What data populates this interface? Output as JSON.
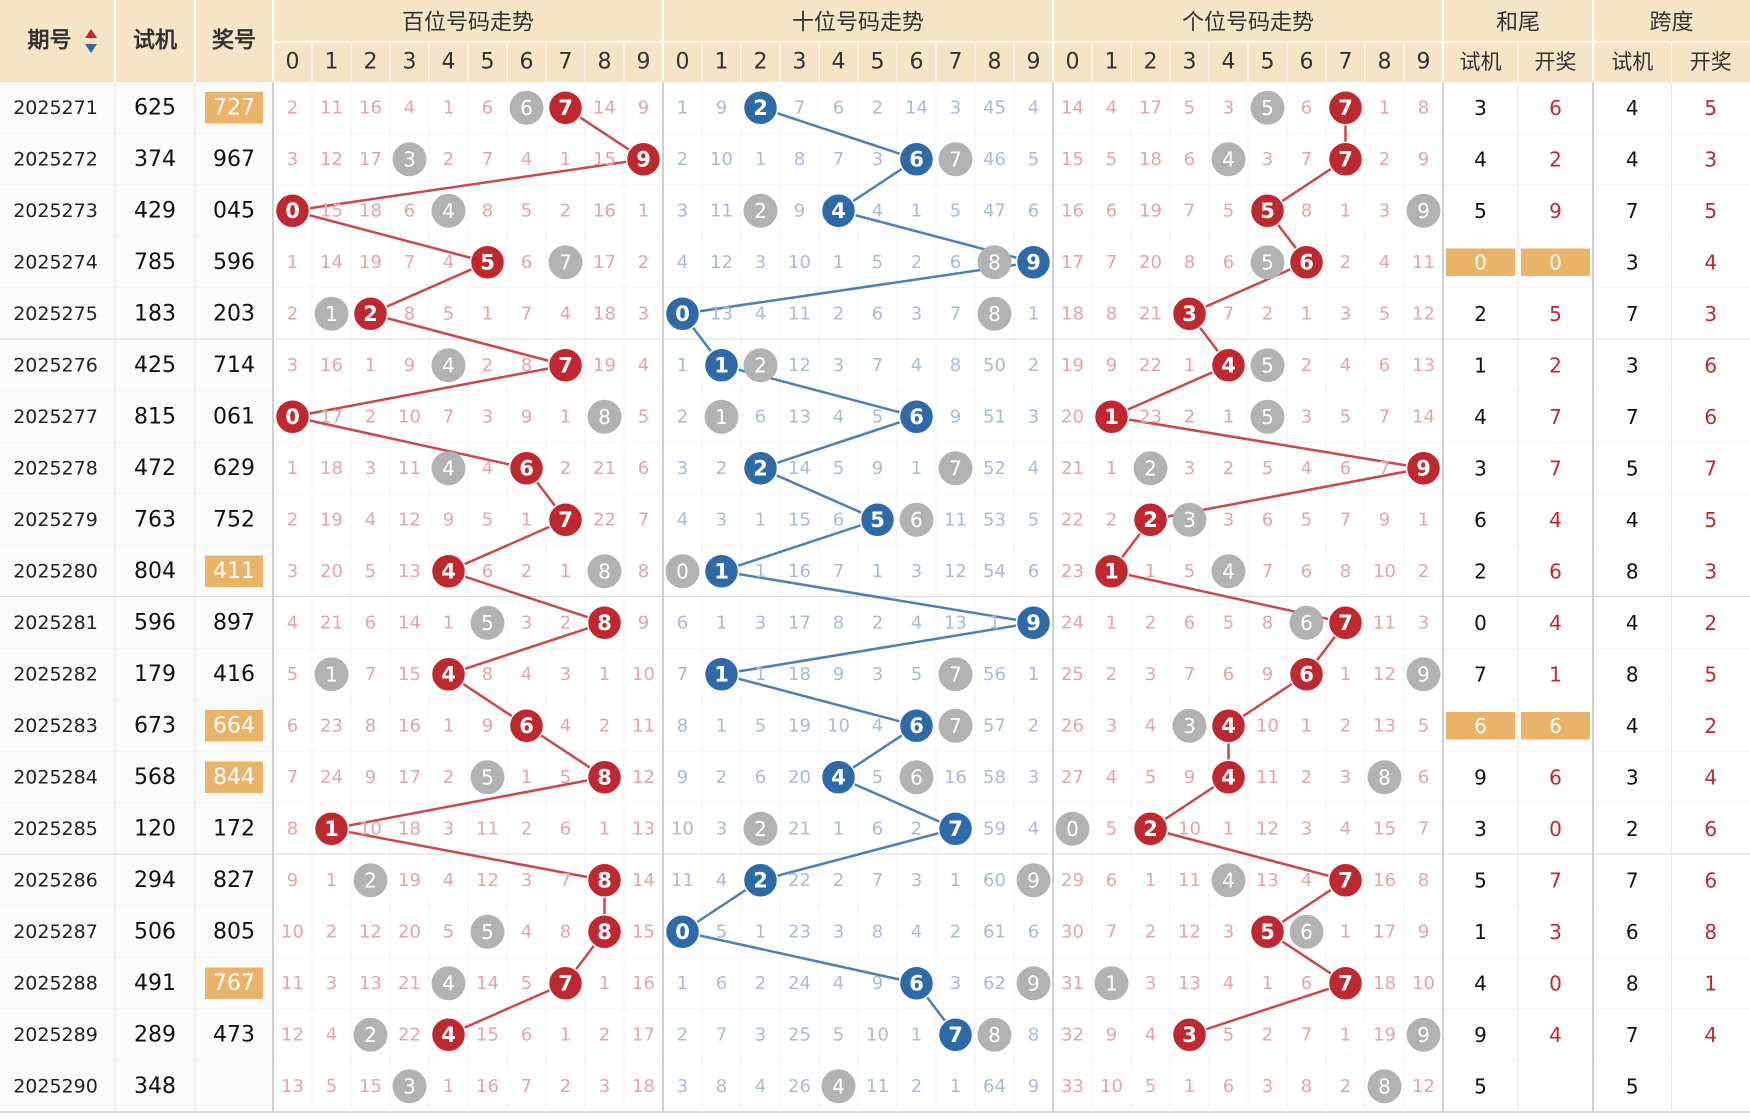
{
  "header": {
    "issue": "期号",
    "trial": "试机",
    "prize": "奖号",
    "groups": [
      "百位号码走势",
      "十位号码走势",
      "个位号码走势"
    ],
    "digits": [
      0,
      1,
      2,
      3,
      4,
      5,
      6,
      7,
      8,
      9
    ],
    "sum_tail": "和尾",
    "span": "跨度",
    "sub": [
      "试机",
      "开奖"
    ]
  },
  "rows": [
    {
      "issue": "2025271",
      "trial": "625",
      "prize": "727",
      "trend": [
        [
          2,
          11,
          16,
          4,
          1,
          6,
          6,
          7,
          14,
          9
        ],
        [
          1,
          9,
          2,
          7,
          6,
          2,
          14,
          3,
          45,
          4
        ],
        [
          14,
          4,
          17,
          5,
          3,
          5,
          6,
          7,
          1,
          8
        ]
      ],
      "sum_tail": [
        3,
        6
      ],
      "span": [
        4,
        5
      ]
    },
    {
      "issue": "2025272",
      "trial": "374",
      "prize": "967",
      "trend": [
        [
          3,
          12,
          17,
          3,
          2,
          7,
          4,
          1,
          15,
          9
        ],
        [
          2,
          10,
          1,
          8,
          7,
          3,
          6,
          7,
          46,
          5
        ],
        [
          15,
          5,
          18,
          6,
          4,
          3,
          7,
          7,
          2,
          9
        ]
      ],
      "sum_tail": [
        4,
        2
      ],
      "span": [
        4,
        3
      ]
    },
    {
      "issue": "2025273",
      "trial": "429",
      "prize": "045",
      "trend": [
        [
          0,
          15,
          18,
          6,
          4,
          8,
          5,
          2,
          16,
          1
        ],
        [
          3,
          11,
          2,
          9,
          4,
          4,
          1,
          5,
          47,
          6
        ],
        [
          16,
          6,
          19,
          7,
          5,
          5,
          8,
          1,
          3,
          9
        ]
      ],
      "sum_tail": [
        5,
        9
      ],
      "span": [
        7,
        5
      ]
    },
    {
      "issue": "2025274",
      "trial": "785",
      "prize": "596",
      "trend": [
        [
          1,
          14,
          19,
          7,
          4,
          5,
          6,
          7,
          17,
          2
        ],
        [
          4,
          12,
          3,
          10,
          1,
          5,
          2,
          6,
          8,
          9
        ],
        [
          17,
          7,
          20,
          8,
          6,
          5,
          6,
          2,
          4,
          11
        ]
      ],
      "sum_tail": [
        0,
        0
      ],
      "span": [
        3,
        4
      ]
    },
    {
      "issue": "2025275",
      "trial": "183",
      "prize": "203",
      "trend": [
        [
          2,
          1,
          2,
          8,
          5,
          1,
          7,
          4,
          18,
          3
        ],
        [
          0,
          13,
          4,
          11,
          2,
          6,
          3,
          7,
          8,
          1
        ],
        [
          18,
          8,
          21,
          3,
          7,
          2,
          1,
          3,
          5,
          12
        ]
      ],
      "sum_tail": [
        2,
        5
      ],
      "span": [
        7,
        3
      ]
    },
    {
      "issue": "2025276",
      "trial": "425",
      "prize": "714",
      "trend": [
        [
          3,
          16,
          1,
          9,
          4,
          2,
          8,
          7,
          19,
          4
        ],
        [
          1,
          1,
          2,
          12,
          3,
          7,
          4,
          8,
          50,
          2
        ],
        [
          19,
          9,
          22,
          1,
          4,
          5,
          2,
          4,
          6,
          13
        ]
      ],
      "sum_tail": [
        1,
        2
      ],
      "span": [
        3,
        6
      ]
    },
    {
      "issue": "2025277",
      "trial": "815",
      "prize": "061",
      "trend": [
        [
          0,
          17,
          2,
          10,
          7,
          3,
          9,
          1,
          8,
          5
        ],
        [
          2,
          1,
          6,
          13,
          4,
          5,
          6,
          9,
          51,
          3
        ],
        [
          20,
          1,
          23,
          2,
          1,
          5,
          3,
          5,
          7,
          14
        ]
      ],
      "sum_tail": [
        4,
        7
      ],
      "span": [
        7,
        6
      ]
    },
    {
      "issue": "2025278",
      "trial": "472",
      "prize": "629",
      "trend": [
        [
          1,
          18,
          3,
          11,
          4,
          4,
          6,
          2,
          21,
          6
        ],
        [
          3,
          2,
          2,
          14,
          5,
          9,
          1,
          7,
          52,
          4
        ],
        [
          21,
          1,
          2,
          3,
          2,
          5,
          4,
          6,
          7,
          9
        ]
      ],
      "sum_tail": [
        3,
        7
      ],
      "span": [
        5,
        7
      ]
    },
    {
      "issue": "2025279",
      "trial": "763",
      "prize": "752",
      "trend": [
        [
          2,
          19,
          4,
          12,
          9,
          5,
          1,
          7,
          22,
          7
        ],
        [
          4,
          3,
          1,
          15,
          6,
          5,
          6,
          11,
          53,
          5
        ],
        [
          22,
          2,
          2,
          3,
          3,
          6,
          5,
          7,
          9,
          1
        ]
      ],
      "sum_tail": [
        6,
        4
      ],
      "span": [
        4,
        5
      ]
    },
    {
      "issue": "2025280",
      "trial": "804",
      "prize": "411",
      "trend": [
        [
          3,
          20,
          5,
          13,
          4,
          6,
          2,
          1,
          8,
          8
        ],
        [
          0,
          1,
          1,
          16,
          7,
          1,
          3,
          12,
          54,
          6
        ],
        [
          23,
          1,
          1,
          5,
          4,
          7,
          6,
          8,
          10,
          2
        ]
      ],
      "sum_tail": [
        2,
        6
      ],
      "span": [
        8,
        3
      ]
    },
    {
      "issue": "2025281",
      "trial": "596",
      "prize": "897",
      "trend": [
        [
          4,
          21,
          6,
          14,
          1,
          5,
          3,
          2,
          8,
          9
        ],
        [
          6,
          1,
          3,
          17,
          8,
          2,
          4,
          13,
          1,
          9
        ],
        [
          24,
          1,
          2,
          6,
          5,
          8,
          6,
          7,
          11,
          3
        ]
      ],
      "sum_tail": [
        0,
        4
      ],
      "span": [
        4,
        2
      ]
    },
    {
      "issue": "2025282",
      "trial": "179",
      "prize": "416",
      "trend": [
        [
          5,
          1,
          7,
          15,
          4,
          8,
          4,
          3,
          1,
          10
        ],
        [
          7,
          1,
          1,
          18,
          9,
          3,
          5,
          7,
          56,
          1
        ],
        [
          25,
          2,
          3,
          7,
          6,
          9,
          6,
          1,
          12,
          9
        ]
      ],
      "sum_tail": [
        7,
        1
      ],
      "span": [
        8,
        5
      ]
    },
    {
      "issue": "2025283",
      "trial": "673",
      "prize": "664",
      "trend": [
        [
          6,
          23,
          8,
          16,
          1,
          9,
          6,
          4,
          2,
          11
        ],
        [
          8,
          1,
          5,
          19,
          10,
          4,
          6,
          7,
          57,
          2
        ],
        [
          26,
          3,
          4,
          3,
          4,
          10,
          1,
          2,
          13,
          5
        ]
      ],
      "sum_tail": [
        6,
        6
      ],
      "span": [
        4,
        2
      ]
    },
    {
      "issue": "2025284",
      "trial": "568",
      "prize": "844",
      "trend": [
        [
          7,
          24,
          9,
          17,
          2,
          5,
          1,
          5,
          8,
          12
        ],
        [
          9,
          2,
          6,
          20,
          4,
          5,
          6,
          16,
          58,
          3
        ],
        [
          27,
          4,
          5,
          9,
          4,
          11,
          2,
          3,
          8,
          6
        ]
      ],
      "sum_tail": [
        9,
        6
      ],
      "span": [
        3,
        4
      ]
    },
    {
      "issue": "2025285",
      "trial": "120",
      "prize": "172",
      "trend": [
        [
          8,
          1,
          10,
          18,
          3,
          11,
          2,
          6,
          1,
          13
        ],
        [
          10,
          3,
          2,
          21,
          1,
          6,
          2,
          7,
          59,
          4
        ],
        [
          0,
          5,
          2,
          10,
          1,
          12,
          3,
          4,
          15,
          7
        ]
      ],
      "sum_tail": [
        3,
        0
      ],
      "span": [
        2,
        6
      ]
    },
    {
      "issue": "2025286",
      "trial": "294",
      "prize": "827",
      "trend": [
        [
          9,
          1,
          2,
          19,
          4,
          12,
          3,
          7,
          8,
          14
        ],
        [
          11,
          4,
          2,
          22,
          2,
          7,
          3,
          1,
          60,
          9
        ],
        [
          29,
          6,
          1,
          11,
          4,
          13,
          4,
          7,
          16,
          8
        ]
      ],
      "sum_tail": [
        5,
        7
      ],
      "span": [
        7,
        6
      ]
    },
    {
      "issue": "2025287",
      "trial": "506",
      "prize": "805",
      "trend": [
        [
          10,
          2,
          12,
          20,
          5,
          5,
          4,
          8,
          8,
          15
        ],
        [
          0,
          5,
          1,
          23,
          3,
          8,
          4,
          2,
          61,
          6
        ],
        [
          30,
          7,
          2,
          12,
          3,
          5,
          6,
          1,
          17,
          9
        ]
      ],
      "sum_tail": [
        1,
        3
      ],
      "span": [
        6,
        8
      ]
    },
    {
      "issue": "2025288",
      "trial": "491",
      "prize": "767",
      "trend": [
        [
          11,
          3,
          13,
          21,
          4,
          14,
          5,
          7,
          1,
          16
        ],
        [
          1,
          6,
          2,
          24,
          4,
          9,
          6,
          3,
          62,
          9
        ],
        [
          31,
          1,
          3,
          13,
          4,
          1,
          6,
          7,
          18,
          10
        ]
      ],
      "sum_tail": [
        4,
        0
      ],
      "span": [
        8,
        1
      ]
    },
    {
      "issue": "2025289",
      "trial": "289",
      "prize": "473",
      "trend": [
        [
          12,
          4,
          2,
          22,
          4,
          15,
          6,
          1,
          2,
          17
        ],
        [
          2,
          7,
          3,
          25,
          5,
          10,
          1,
          7,
          8,
          8
        ],
        [
          32,
          9,
          4,
          3,
          5,
          2,
          7,
          1,
          19,
          9
        ]
      ],
      "sum_tail": [
        9,
        4
      ],
      "span": [
        7,
        4
      ]
    },
    {
      "issue": "2025290",
      "trial": "348",
      "prize": null,
      "trend": [
        [
          13,
          5,
          15,
          3,
          1,
          16,
          7,
          2,
          3,
          18
        ],
        [
          3,
          8,
          4,
          26,
          4,
          11,
          2,
          1,
          64,
          9
        ],
        [
          33,
          10,
          5,
          1,
          6,
          3,
          8,
          2,
          8,
          12
        ]
      ],
      "sum_tail": [
        5,
        null
      ],
      "span": [
        5,
        null
      ]
    }
  ]
}
